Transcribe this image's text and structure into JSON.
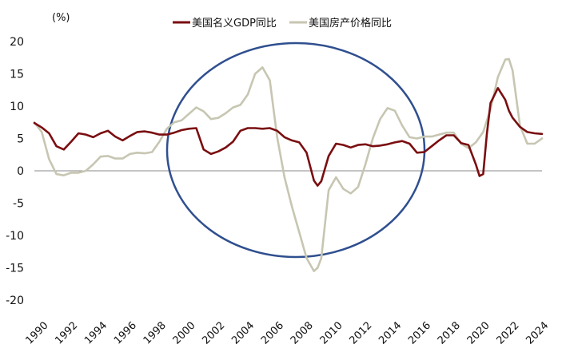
{
  "chart_data": {
    "type": "line",
    "unit_label": "(%)",
    "title": "",
    "xlabel": "",
    "ylabel": "",
    "ylim": [
      -20,
      20
    ],
    "xlim": [
      1990,
      2024.5
    ],
    "y_ticks": [
      "20",
      "15",
      "10",
      "5",
      "0",
      "-5",
      "-10",
      "-15",
      "-20"
    ],
    "x_ticks": [
      "1990",
      "1992",
      "1994",
      "1996",
      "1998",
      "2000",
      "2002",
      "2004",
      "2006",
      "2008",
      "2010",
      "2012",
      "2014",
      "2016",
      "2018",
      "2020",
      "2022",
      "2024"
    ],
    "legend_position": "top-center",
    "grid": false,
    "annotation": "ellipse around 1999–2016",
    "series": [
      {
        "name": "美国名义GDP同比",
        "color": "#7a0e10",
        "x": [
          1990,
          1990.5,
          1991,
          1991.5,
          1992,
          1992.5,
          1993,
          1993.5,
          1994,
          1994.5,
          1995,
          1995.5,
          1996,
          1996.5,
          1997,
          1997.5,
          1998,
          1998.5,
          1999,
          1999.5,
          2000,
          2000.5,
          2001,
          2001.5,
          2002,
          2002.5,
          2003,
          2003.5,
          2004,
          2004.5,
          2005,
          2005.5,
          2006,
          2006.5,
          2007,
          2007.5,
          2008,
          2008.5,
          2009,
          2009.25,
          2009.5,
          2010,
          2010.5,
          2011,
          2011.5,
          2012,
          2012.5,
          2013,
          2013.5,
          2014,
          2014.5,
          2015,
          2015.5,
          2016,
          2016.5,
          2017,
          2017.5,
          2018,
          2018.5,
          2019,
          2019.5,
          2020,
          2020.25,
          2020.5,
          2020.75,
          2021,
          2021.5,
          2022,
          2022.25,
          2022.5,
          2023,
          2023.5,
          2024,
          2024.5
        ],
        "values": [
          7.4,
          6.7,
          5.8,
          3.8,
          3.3,
          4.5,
          5.8,
          5.6,
          5.2,
          5.8,
          6.2,
          5.3,
          4.7,
          5.4,
          6.0,
          6.1,
          5.9,
          5.6,
          5.6,
          5.9,
          6.3,
          6.5,
          6.6,
          3.3,
          2.6,
          3.0,
          3.6,
          4.5,
          6.2,
          6.6,
          6.6,
          6.5,
          6.6,
          6.2,
          5.2,
          4.7,
          4.4,
          2.8,
          -1.5,
          -2.3,
          -1.6,
          2.3,
          4.2,
          4.0,
          3.6,
          4.0,
          4.1,
          3.8,
          3.9,
          4.1,
          4.4,
          4.6,
          4.2,
          2.8,
          2.9,
          3.8,
          4.7,
          5.5,
          5.5,
          4.3,
          4.0,
          1.0,
          -0.8,
          -0.5,
          5.7,
          10.5,
          12.8,
          11.0,
          9.3,
          8.2,
          6.8,
          6.0,
          5.8,
          5.7
        ]
      },
      {
        "name": "美国房产价格同比",
        "color": "#c7c6b2",
        "x": [
          1990,
          1990.5,
          1991,
          1991.5,
          1992,
          1992.5,
          1993,
          1993.5,
          1994,
          1994.5,
          1995,
          1995.5,
          1996,
          1996.5,
          1997,
          1997.5,
          1998,
          1998.5,
          1999,
          1999.5,
          2000,
          2000.5,
          2001,
          2001.5,
          2002,
          2002.5,
          2003,
          2003.5,
          2004,
          2004.5,
          2005,
          2005.5,
          2006,
          2006.5,
          2007,
          2007.5,
          2008,
          2008.5,
          2009,
          2009.25,
          2009.5,
          2010,
          2010.5,
          2011,
          2011.5,
          2012,
          2012.5,
          2013,
          2013.5,
          2014,
          2014.5,
          2015,
          2015.5,
          2016,
          2016.5,
          2017,
          2017.5,
          2018,
          2018.5,
          2019,
          2019.5,
          2020,
          2020.5,
          2021,
          2021.5,
          2022,
          2022.25,
          2022.5,
          2023,
          2023.5,
          2024,
          2024.5
        ],
        "values": [
          7.5,
          6.0,
          1.8,
          -0.5,
          -0.7,
          -0.3,
          -0.3,
          0.0,
          1.0,
          2.2,
          2.3,
          1.9,
          1.9,
          2.6,
          2.8,
          2.7,
          2.9,
          4.5,
          6.5,
          7.5,
          7.8,
          8.8,
          9.8,
          9.2,
          8.0,
          8.2,
          8.9,
          9.8,
          10.2,
          11.8,
          15.0,
          16.0,
          14.0,
          5.2,
          -1.0,
          -5.5,
          -9.5,
          -13.5,
          -15.5,
          -15.0,
          -13.5,
          -3.0,
          -1.0,
          -2.8,
          -3.5,
          -2.5,
          1.0,
          5.0,
          8.0,
          9.7,
          9.3,
          7.0,
          5.2,
          5.0,
          5.3,
          5.3,
          5.6,
          5.9,
          5.9,
          4.2,
          3.5,
          4.4,
          6.0,
          9.5,
          14.5,
          17.2,
          17.3,
          15.5,
          7.0,
          4.2,
          4.2,
          5.0
        ]
      }
    ]
  }
}
